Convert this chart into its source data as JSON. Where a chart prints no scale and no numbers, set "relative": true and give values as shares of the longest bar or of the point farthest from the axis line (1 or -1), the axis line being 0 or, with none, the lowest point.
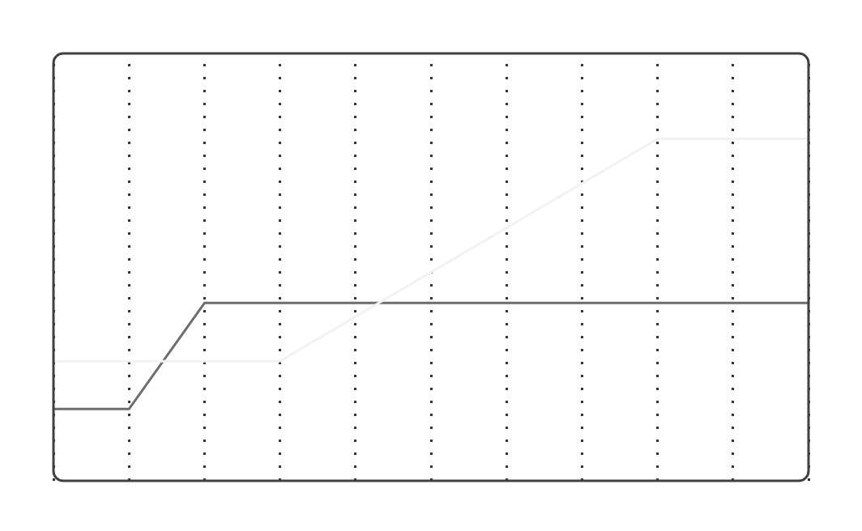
{
  "chart_data": {
    "type": "line",
    "relative": true,
    "categories": [
      null,
      null,
      null,
      null,
      null,
      null,
      null,
      null,
      null,
      null,
      null
    ],
    "series": [
      {
        "color": "#f2f2f2",
        "values": [
          0.35,
          0.35,
          0.35,
          0.35,
          0.48,
          0.61,
          0.74,
          0.87,
          1,
          1,
          1
        ]
      },
      {
        "color": "#6e6e6e",
        "values": [
          0.21,
          0.21,
          0.52,
          0.52,
          0.52,
          0.52,
          0.52,
          0.52,
          0.52,
          0.52,
          0.52
        ]
      }
    ],
    "grid": "x",
    "legend": false,
    "marker": "none",
    "line_style": "solid"
  }
}
